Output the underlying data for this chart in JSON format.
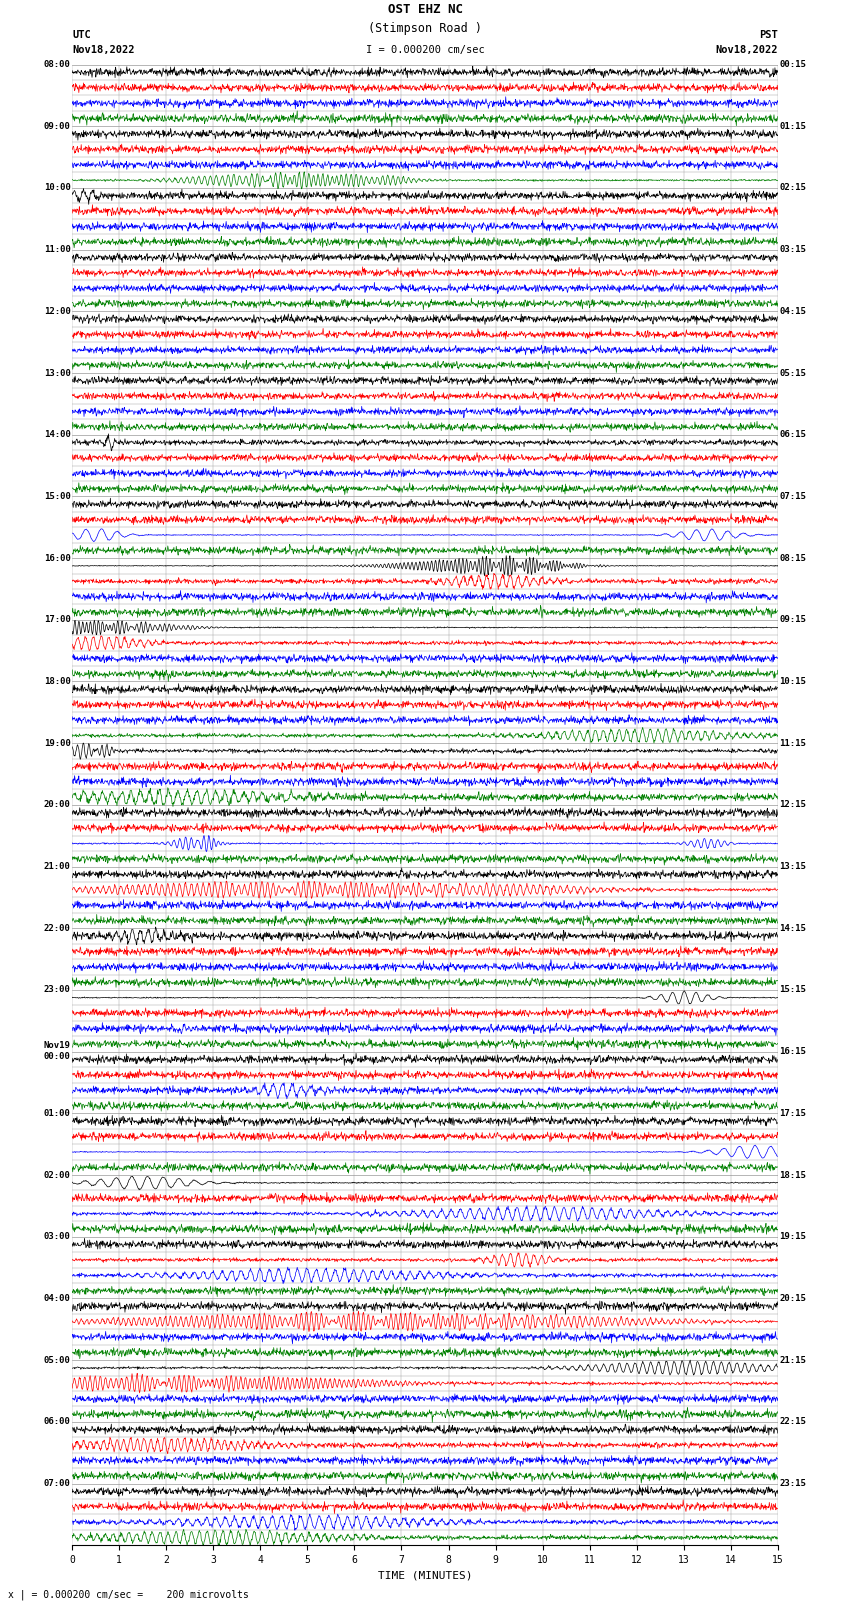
{
  "title_line1": "OST EHZ NC",
  "title_line2": "(Stimpson Road )",
  "scale_label": "I = 0.000200 cm/sec",
  "left_header_line1": "UTC",
  "left_header_line2": "Nov18,2022",
  "right_header_line1": "PST",
  "right_header_line2": "Nov18,2022",
  "bottom_label": "TIME (MINUTES)",
  "bottom_footnote": "x | = 0.000200 cm/sec =    200 microvolts",
  "x_min": 0,
  "x_max": 15,
  "x_ticks": [
    0,
    1,
    2,
    3,
    4,
    5,
    6,
    7,
    8,
    9,
    10,
    11,
    12,
    13,
    14,
    15
  ],
  "fig_width": 8.5,
  "fig_height": 16.13,
  "bg_color": "#ffffff",
  "grid_color": "#999999",
  "trace_colors": [
    "black",
    "red",
    "blue",
    "green"
  ],
  "dpi": 100,
  "num_hours": 24,
  "sub_rows_per_hour": 4,
  "hour_labels_utc": [
    "08:00",
    "09:00",
    "10:00",
    "11:00",
    "12:00",
    "13:00",
    "14:00",
    "15:00",
    "16:00",
    "17:00",
    "18:00",
    "19:00",
    "20:00",
    "21:00",
    "22:00",
    "23:00",
    "Nov19\n00:00",
    "01:00",
    "02:00",
    "03:00",
    "04:00",
    "05:00",
    "06:00",
    "07:00"
  ],
  "hour_labels_pst": [
    "00:15",
    "01:15",
    "02:15",
    "03:15",
    "04:15",
    "05:15",
    "06:15",
    "07:15",
    "08:15",
    "09:15",
    "10:15",
    "11:15",
    "12:15",
    "13:15",
    "14:15",
    "15:15",
    "16:15",
    "17:15",
    "18:15",
    "19:15",
    "20:15",
    "21:15",
    "22:15",
    "23:15"
  ]
}
